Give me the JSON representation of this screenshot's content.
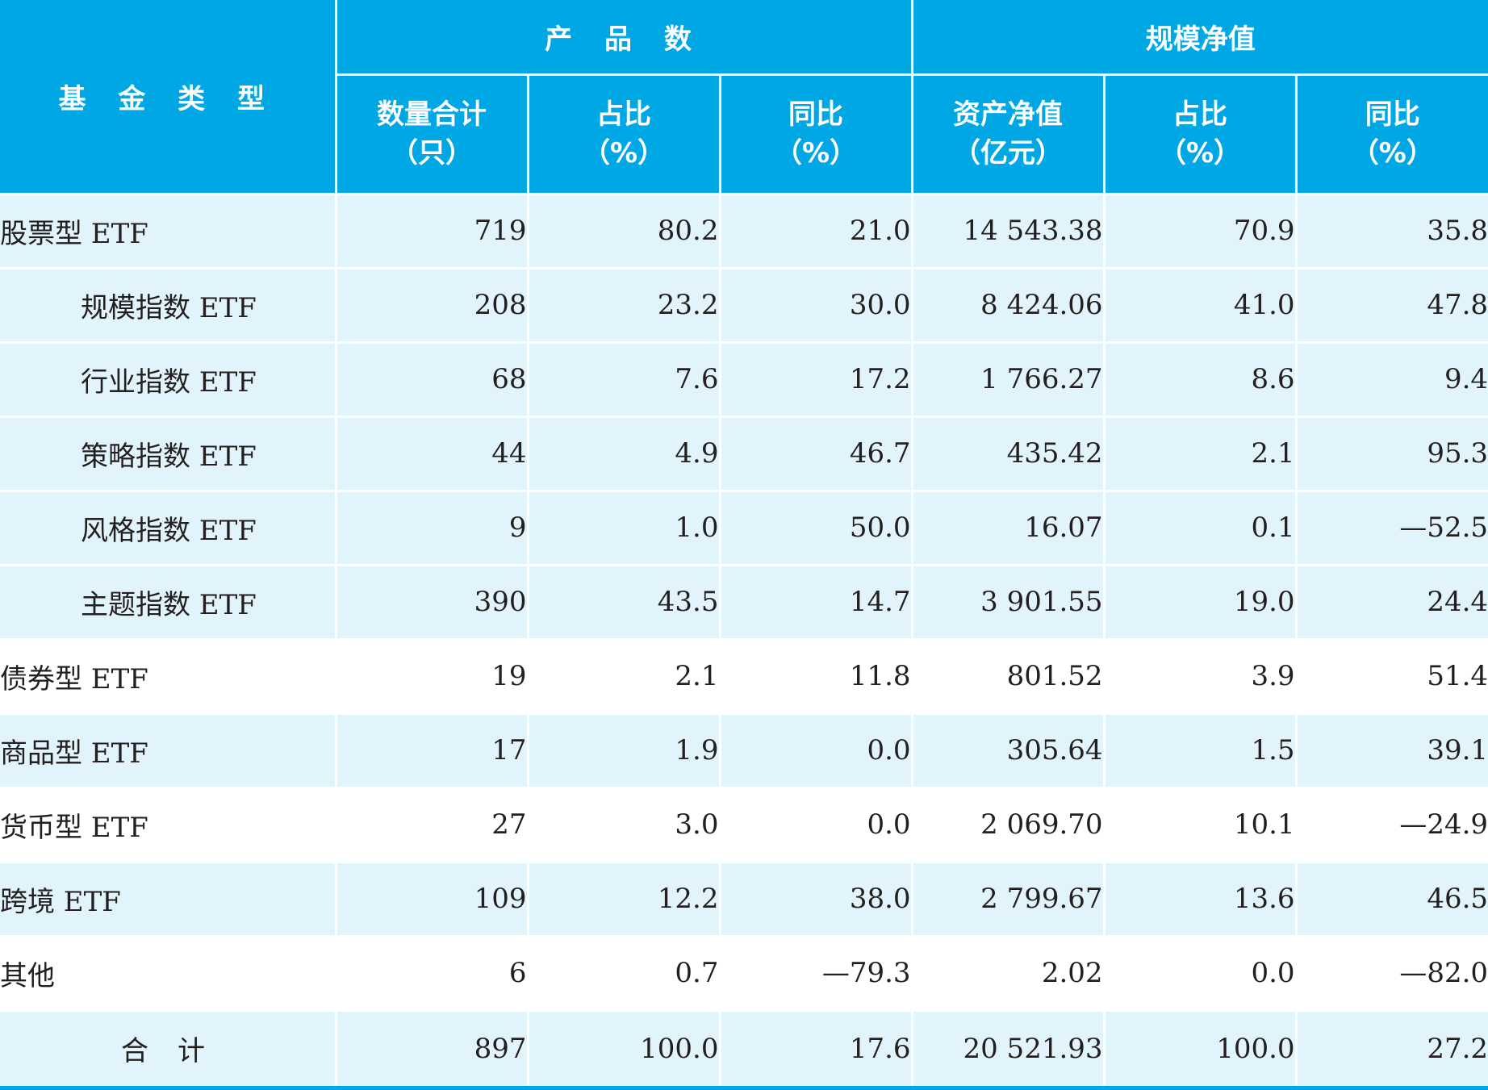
{
  "header": {
    "fund_type": "基 金 类 型",
    "group_products": "产 品 数",
    "group_scale": "规模净值",
    "columns": [
      {
        "label": "数量合计",
        "unit": "（只）"
      },
      {
        "label": "占比",
        "unit": "（%）"
      },
      {
        "label": "同比",
        "unit": "（%）"
      },
      {
        "label": "资产净值",
        "unit": "（亿元）"
      },
      {
        "label": "占比",
        "unit": "（%）"
      },
      {
        "label": "同比",
        "unit": "（%）"
      }
    ]
  },
  "rows": [
    {
      "name": "股票型 ETF",
      "values": [
        "719",
        "80.2",
        "21.0",
        "14 543.38",
        "70.9",
        "35.8"
      ]
    },
    {
      "name": "规模指数 ETF",
      "values": [
        "208",
        "23.2",
        "30.0",
        "8 424.06",
        "41.0",
        "47.8"
      ]
    },
    {
      "name": "行业指数 ETF",
      "values": [
        "68",
        "7.6",
        "17.2",
        "1 766.27",
        "8.6",
        "9.4"
      ]
    },
    {
      "name": "策略指数 ETF",
      "values": [
        "44",
        "4.9",
        "46.7",
        "435.42",
        "2.1",
        "95.3"
      ]
    },
    {
      "name": "风格指数 ETF",
      "values": [
        "9",
        "1.0",
        "50.0",
        "16.07",
        "0.1",
        "—52.5"
      ]
    },
    {
      "name": "主题指数 ETF",
      "values": [
        "390",
        "43.5",
        "14.7",
        "3 901.55",
        "19.0",
        "24.4"
      ]
    },
    {
      "name": "债券型 ETF",
      "values": [
        "19",
        "2.1",
        "11.8",
        "801.52",
        "3.9",
        "51.4"
      ]
    },
    {
      "name": "商品型 ETF",
      "values": [
        "17",
        "1.9",
        "0.0",
        "305.64",
        "1.5",
        "39.1"
      ]
    },
    {
      "name": "货币型 ETF",
      "values": [
        "27",
        "3.0",
        "0.0",
        "2 069.70",
        "10.1",
        "—24.9"
      ]
    },
    {
      "name": "跨境 ETF",
      "values": [
        "109",
        "12.2",
        "38.0",
        "2 799.67",
        "13.6",
        "46.5"
      ]
    },
    {
      "name": "其他",
      "values": [
        "6",
        "0.7",
        "—79.3",
        "2.02",
        "0.0",
        "—82.0"
      ]
    }
  ],
  "total": {
    "name": "合计",
    "values": [
      "897",
      "100.0",
      "17.6",
      "20 521.93",
      "100.0",
      "27.2"
    ]
  },
  "colors": {
    "header_bg": "#00a7e5",
    "row_shade": "#e1f4fc",
    "text": "#231f20"
  }
}
